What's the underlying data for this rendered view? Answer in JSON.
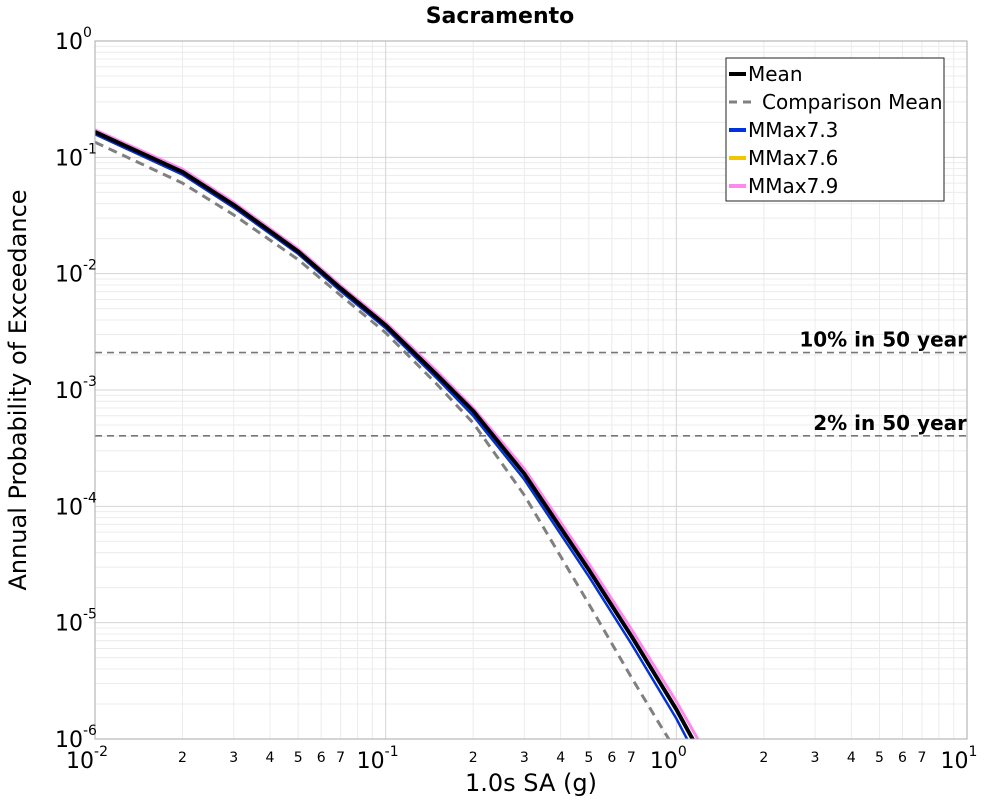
{
  "chart_data": {
    "type": "line",
    "title": "Sacramento",
    "xlabel": "1.0s SA (g)",
    "ylabel": "Annual Probability of Exceedance",
    "xscale": "log",
    "yscale": "log",
    "xlim": [
      0.01,
      10
    ],
    "ylim": [
      1e-06,
      1
    ],
    "grid": true,
    "legend_position": "top-right",
    "x_major_ticks": [
      {
        "base": "10",
        "exp": "-2"
      },
      {
        "base": "10",
        "exp": "-1"
      },
      {
        "base": "10",
        "exp": "0"
      },
      {
        "base": "10",
        "exp": "1"
      }
    ],
    "y_major_ticks": [
      {
        "base": "10",
        "exp": "0"
      },
      {
        "base": "10",
        "exp": "-1"
      },
      {
        "base": "10",
        "exp": "-2"
      },
      {
        "base": "10",
        "exp": "-3"
      },
      {
        "base": "10",
        "exp": "-4"
      },
      {
        "base": "10",
        "exp": "-5"
      },
      {
        "base": "10",
        "exp": "-6"
      }
    ],
    "x_minor_tick_labels": [
      "2",
      "3",
      "4",
      "5",
      "6",
      "7"
    ],
    "series": [
      {
        "name": "Mean",
        "color": "#000000",
        "dash": "solid",
        "width": 4,
        "x": [
          0.01,
          0.02,
          0.03,
          0.05,
          0.07,
          0.1,
          0.15,
          0.2,
          0.3,
          0.5,
          0.7,
          1.0,
          1.15
        ],
        "y": [
          0.165,
          0.075,
          0.039,
          0.0155,
          0.0075,
          0.0036,
          0.00135,
          0.00066,
          0.00019,
          2.85e-05,
          7.7e-06,
          1.8e-06,
          9.5e-07
        ]
      },
      {
        "name": "Comparison Mean",
        "color": "#808080",
        "dash": "dashed",
        "width": 3,
        "x": [
          0.01,
          0.02,
          0.03,
          0.05,
          0.07,
          0.1,
          0.15,
          0.2,
          0.3,
          0.5,
          0.7,
          0.9,
          1.05
        ],
        "y": [
          0.135,
          0.06,
          0.032,
          0.0132,
          0.0065,
          0.0031,
          0.00112,
          0.00052,
          0.000125,
          1.45e-05,
          3.4e-06,
          1.2e-06,
          6.5e-07
        ]
      },
      {
        "name": "MMax7.3",
        "color": "#0033dd",
        "dash": "solid",
        "width": 2.5,
        "x": [
          0.01,
          0.02,
          0.03,
          0.05,
          0.07,
          0.1,
          0.15,
          0.2,
          0.3,
          0.5,
          0.7,
          1.0,
          1.1
        ],
        "y": [
          0.158,
          0.071,
          0.037,
          0.0148,
          0.0071,
          0.0034,
          0.00126,
          0.0006,
          0.00017,
          2.5e-05,
          6.6e-06,
          1.5e-06,
          9.5e-07
        ]
      },
      {
        "name": "MMax7.6",
        "color": "#f2c500",
        "dash": "solid",
        "width": 2.5,
        "x": [
          0.01,
          0.02,
          0.03,
          0.05,
          0.07,
          0.1,
          0.15,
          0.2,
          0.3,
          0.5,
          0.7,
          1.0,
          1.15
        ],
        "y": [
          0.165,
          0.075,
          0.039,
          0.0155,
          0.0075,
          0.0036,
          0.00135,
          0.00066,
          0.00019,
          2.85e-05,
          7.7e-06,
          1.8e-06,
          9.5e-07
        ]
      },
      {
        "name": "MMax7.9",
        "color": "#ff88ee",
        "dash": "solid",
        "width": 3,
        "x": [
          0.01,
          0.02,
          0.03,
          0.05,
          0.07,
          0.1,
          0.15,
          0.2,
          0.3,
          0.5,
          0.7,
          1.0,
          1.2
        ],
        "y": [
          0.172,
          0.079,
          0.041,
          0.0163,
          0.0079,
          0.0038,
          0.00145,
          0.0007,
          0.00021,
          3.2e-05,
          8.8e-06,
          2.1e-06,
          9.5e-07
        ]
      }
    ],
    "reference_lines": [
      {
        "label": "10% in 50 year",
        "y": 0.0021
      },
      {
        "label": "2% in 50 year",
        "y": 0.000404
      }
    ]
  }
}
